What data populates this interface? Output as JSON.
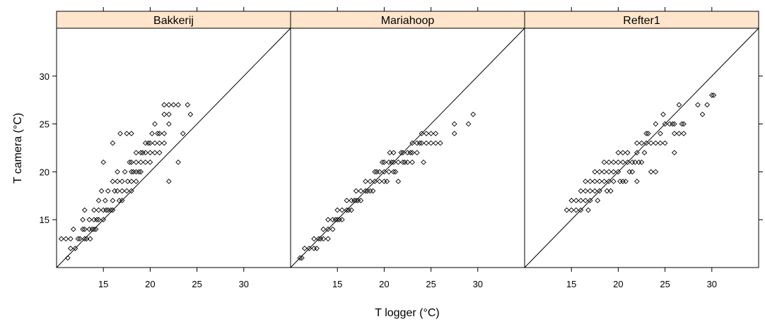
{
  "chart_data": {
    "type": "scatter",
    "xlabel": "T logger (°C)",
    "ylabel": "T camera (°C)",
    "xlim": [
      10,
      35
    ],
    "ylim": [
      10,
      35
    ],
    "x_ticks": [
      15,
      20,
      25,
      30
    ],
    "y_ticks": [
      15,
      20,
      25,
      30
    ],
    "reference_line": "y = x",
    "marker": "open-diamond",
    "panels": [
      {
        "name": "Bakkerij",
        "points": [
          [
            10.5,
            13
          ],
          [
            11,
            13
          ],
          [
            11.5,
            13
          ],
          [
            11.2,
            11
          ],
          [
            11.5,
            12
          ],
          [
            12,
            12
          ],
          [
            11.8,
            14
          ],
          [
            12.5,
            13
          ],
          [
            12.8,
            14
          ],
          [
            13,
            13
          ],
          [
            13.2,
            13
          ],
          [
            13.5,
            14
          ],
          [
            13,
            14
          ],
          [
            13.5,
            15
          ],
          [
            13,
            16
          ],
          [
            14,
            14
          ],
          [
            14.2,
            14
          ],
          [
            14,
            15
          ],
          [
            14.5,
            15
          ],
          [
            14.5,
            16
          ],
          [
            14,
            16
          ],
          [
            15,
            15
          ],
          [
            15,
            16
          ],
          [
            15.2,
            17
          ],
          [
            14.5,
            17
          ],
          [
            15,
            21
          ],
          [
            15.5,
            18
          ],
          [
            15.5,
            16
          ],
          [
            16,
            16
          ],
          [
            16,
            17
          ],
          [
            16,
            19
          ],
          [
            16,
            23
          ],
          [
            16.5,
            18
          ],
          [
            16.5,
            19
          ],
          [
            16.5,
            20
          ],
          [
            16.8,
            24
          ],
          [
            17,
            17
          ],
          [
            17,
            18
          ],
          [
            17,
            19
          ],
          [
            17.3,
            20
          ],
          [
            17.5,
            24
          ],
          [
            17.5,
            18
          ],
          [
            18,
            18
          ],
          [
            18,
            19
          ],
          [
            18,
            20
          ],
          [
            18,
            21
          ],
          [
            18,
            24
          ],
          [
            18.5,
            20
          ],
          [
            18.5,
            21
          ],
          [
            18.5,
            22
          ],
          [
            18.5,
            19
          ],
          [
            19,
            20
          ],
          [
            19,
            21
          ],
          [
            19,
            22
          ],
          [
            19.5,
            22
          ],
          [
            19.5,
            21
          ],
          [
            19.5,
            23
          ],
          [
            20,
            22
          ],
          [
            20,
            23
          ],
          [
            20,
            21
          ],
          [
            20.5,
            22
          ],
          [
            20.5,
            23
          ],
          [
            20.5,
            25
          ],
          [
            21,
            23
          ],
          [
            21,
            24
          ],
          [
            21,
            22
          ],
          [
            21.5,
            23
          ],
          [
            21.5,
            24
          ],
          [
            21.5,
            26
          ],
          [
            21.5,
            27
          ],
          [
            22,
            26
          ],
          [
            22,
            25
          ],
          [
            22,
            27
          ],
          [
            22,
            19
          ],
          [
            22.5,
            27
          ],
          [
            23,
            21
          ],
          [
            23,
            27
          ],
          [
            23.5,
            24
          ],
          [
            24,
            27
          ],
          [
            24.3,
            26
          ],
          [
            12.3,
            13
          ],
          [
            12.8,
            15
          ],
          [
            13.8,
            14
          ],
          [
            14.8,
            18
          ],
          [
            15.8,
            16
          ],
          [
            16.2,
            18
          ],
          [
            17.6,
            19
          ],
          [
            18.8,
            20
          ],
          [
            19.8,
            23
          ],
          [
            20.8,
            24
          ],
          [
            13.6,
            13
          ],
          [
            14.3,
            15
          ],
          [
            15.3,
            16
          ],
          [
            16.7,
            17
          ],
          [
            17.8,
            21
          ],
          [
            18.2,
            20
          ],
          [
            19.2,
            22
          ],
          [
            20.2,
            24
          ]
        ]
      },
      {
        "name": "Mariahoop",
        "points": [
          [
            11,
            11
          ],
          [
            11.2,
            11
          ],
          [
            11.5,
            12
          ],
          [
            12,
            12
          ],
          [
            12.5,
            12
          ],
          [
            12.5,
            13
          ],
          [
            13,
            13
          ],
          [
            13.5,
            13
          ],
          [
            13.5,
            14
          ],
          [
            14,
            13
          ],
          [
            14,
            14
          ],
          [
            14,
            15
          ],
          [
            14.5,
            14
          ],
          [
            14.5,
            15
          ],
          [
            15,
            15
          ],
          [
            15,
            16
          ],
          [
            15.5,
            15
          ],
          [
            15.5,
            16
          ],
          [
            16,
            16
          ],
          [
            16,
            17
          ],
          [
            16.5,
            16
          ],
          [
            16.5,
            17
          ],
          [
            17,
            17
          ],
          [
            17,
            18
          ],
          [
            17.5,
            17
          ],
          [
            17.5,
            18
          ],
          [
            18,
            18
          ],
          [
            18,
            19
          ],
          [
            18.5,
            18
          ],
          [
            18.5,
            19
          ],
          [
            19,
            19
          ],
          [
            19,
            20
          ],
          [
            19.5,
            19
          ],
          [
            19.5,
            20
          ],
          [
            20,
            19
          ],
          [
            20,
            20
          ],
          [
            20,
            21
          ],
          [
            20.5,
            20
          ],
          [
            20.5,
            21
          ],
          [
            21,
            20
          ],
          [
            21,
            21
          ],
          [
            21,
            22
          ],
          [
            21.5,
            19
          ],
          [
            21.5,
            21
          ],
          [
            22,
            21
          ],
          [
            22,
            22
          ],
          [
            22.5,
            22
          ],
          [
            22.5,
            21
          ],
          [
            23,
            21
          ],
          [
            23,
            22
          ],
          [
            23,
            23
          ],
          [
            23.5,
            22
          ],
          [
            23.5,
            23
          ],
          [
            24,
            23
          ],
          [
            24,
            24
          ],
          [
            24.5,
            24
          ],
          [
            24.5,
            23
          ],
          [
            25,
            24
          ],
          [
            25,
            23
          ],
          [
            25.5,
            24
          ],
          [
            25.5,
            23
          ],
          [
            26,
            23
          ],
          [
            27.5,
            24
          ],
          [
            27.5,
            25
          ],
          [
            29,
            25
          ],
          [
            29.5,
            26
          ],
          [
            13.2,
            13
          ],
          [
            15.2,
            15
          ],
          [
            16.8,
            17
          ],
          [
            18.2,
            18
          ],
          [
            19.2,
            20
          ],
          [
            20.8,
            21
          ],
          [
            21.8,
            22
          ],
          [
            22.8,
            22
          ],
          [
            24.2,
            21
          ],
          [
            20.3,
            19
          ],
          [
            17.2,
            17
          ],
          [
            14.8,
            15
          ],
          [
            19.8,
            21
          ],
          [
            21.2,
            20
          ],
          [
            22.2,
            21
          ],
          [
            23.8,
            23
          ],
          [
            12.8,
            12
          ],
          [
            16.2,
            16
          ],
          [
            18.8,
            18
          ],
          [
            20.6,
            22
          ]
        ]
      },
      {
        "name": "Refter1",
        "points": [
          [
            14.5,
            16
          ],
          [
            15,
            16
          ],
          [
            15.5,
            16
          ],
          [
            15,
            17
          ],
          [
            15.5,
            17
          ],
          [
            16,
            16
          ],
          [
            16,
            17
          ],
          [
            16,
            18
          ],
          [
            16.5,
            17
          ],
          [
            16.5,
            18
          ],
          [
            16.5,
            19
          ],
          [
            17,
            17
          ],
          [
            17,
            18
          ],
          [
            17,
            19
          ],
          [
            17.5,
            18
          ],
          [
            17.5,
            19
          ],
          [
            17.5,
            20
          ],
          [
            18,
            18
          ],
          [
            18,
            19
          ],
          [
            18,
            20
          ],
          [
            18.5,
            19
          ],
          [
            18.5,
            20
          ],
          [
            18.5,
            21
          ],
          [
            19,
            19
          ],
          [
            19,
            20
          ],
          [
            19,
            21
          ],
          [
            19.5,
            19
          ],
          [
            19.5,
            20
          ],
          [
            19.5,
            21
          ],
          [
            20,
            20
          ],
          [
            20,
            21
          ],
          [
            20,
            22
          ],
          [
            20.5,
            21
          ],
          [
            20.5,
            22
          ],
          [
            20.5,
            19
          ],
          [
            21,
            21
          ],
          [
            21,
            22
          ],
          [
            21.5,
            20
          ],
          [
            21.5,
            21
          ],
          [
            22,
            22
          ],
          [
            22,
            23
          ],
          [
            22,
            19
          ],
          [
            22.5,
            21
          ],
          [
            22.5,
            23
          ],
          [
            23,
            23
          ],
          [
            23,
            24
          ],
          [
            23.5,
            23
          ],
          [
            23.5,
            20
          ],
          [
            24,
            20
          ],
          [
            24,
            23
          ],
          [
            24,
            25
          ],
          [
            24.5,
            24
          ],
          [
            24.5,
            23
          ],
          [
            25,
            23
          ],
          [
            25,
            25
          ],
          [
            25.5,
            25
          ],
          [
            26,
            24
          ],
          [
            26,
            25
          ],
          [
            26,
            22
          ],
          [
            26.5,
            24
          ],
          [
            26.5,
            27
          ],
          [
            27,
            24
          ],
          [
            27,
            25
          ],
          [
            28.5,
            27
          ],
          [
            29,
            26
          ],
          [
            29.5,
            27
          ],
          [
            30,
            28
          ],
          [
            30.2,
            28
          ],
          [
            17.8,
            17
          ],
          [
            19.2,
            18
          ],
          [
            20.8,
            19
          ],
          [
            21.8,
            21
          ],
          [
            22.8,
            22
          ],
          [
            23.2,
            24
          ],
          [
            24.8,
            26
          ],
          [
            25.8,
            25
          ],
          [
            26.8,
            25
          ],
          [
            16.8,
            16
          ],
          [
            18.8,
            18
          ],
          [
            20.2,
            19
          ],
          [
            21.2,
            20
          ],
          [
            22.2,
            21
          ]
        ]
      }
    ]
  }
}
